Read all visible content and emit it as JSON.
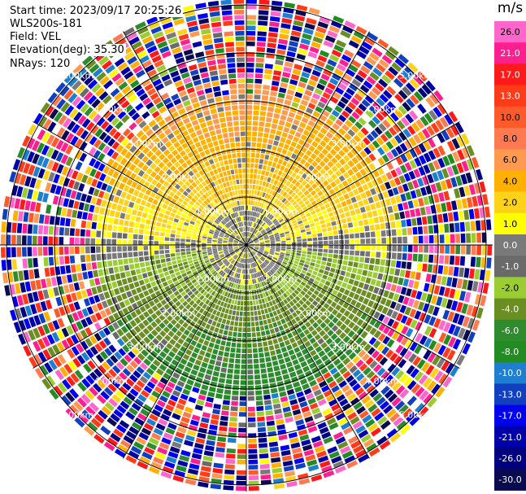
{
  "header": {
    "start_time": "Start time: 2023/09/17 20:25:26",
    "station": "WLS200s-181",
    "field": "Field: VEL",
    "elevation": "Elevation(deg): 35.30",
    "nrays": "NRays: 120"
  },
  "colorbar": {
    "unit": "m/s",
    "ticks": [
      "26.0",
      "21.0",
      "17.0",
      "13.0",
      "10.0",
      "8.0",
      "6.0",
      "4.0",
      "2.0",
      "1.0",
      "0.0",
      "-1.0",
      "-2.0",
      "-4.0",
      "-6.0",
      "-8.0",
      "-10.0",
      "-13.0",
      "-17.0",
      "-21.0",
      "-26.0",
      "-30.0"
    ],
    "colors": [
      "#ff66cc",
      "#ff1f8f",
      "#ff1a1a",
      "#ff3b1a",
      "#ff5a2a",
      "#ff7a50",
      "#ff9a50",
      "#ffb000",
      "#ffd21a",
      "#ffff00",
      "#7a7a7a",
      "#6a6a6a",
      "#9acd32",
      "#6b8e23",
      "#2e8b2e",
      "#228b22",
      "#1e7fd0",
      "#1040c0",
      "#0000ee",
      "#0000aa",
      "#000080",
      "#0a0a50"
    ]
  },
  "chart_data": {
    "type": "ppi",
    "field": "VEL",
    "units": "m/s",
    "elevation_deg": 35.3,
    "n_rays": 120,
    "range_rings_km": [
      1.0,
      2.0,
      3.0,
      4.0,
      5.0
    ],
    "ring_labels": [
      "1.00km",
      "2.00km",
      "3.00km",
      "4.00km",
      "5.00km"
    ],
    "radial_spokes_deg": [
      0,
      30,
      60,
      90,
      120,
      150,
      180,
      210,
      240,
      270,
      300,
      330
    ],
    "color_range": [
      -30.0,
      26.0
    ],
    "regions": [
      {
        "range_km": [
          0.0,
          3.3
        ],
        "sector": "north",
        "values_ms": [
          1.0,
          6.0
        ]
      },
      {
        "range_km": [
          0.0,
          0.8
        ],
        "sector": "center",
        "values_ms": [
          -1.0,
          1.0
        ]
      },
      {
        "range_km": [
          0.0,
          3.3
        ],
        "sector": "south",
        "values_ms": [
          -8.0,
          -2.0
        ]
      },
      {
        "range_km": [
          3.3,
          5.5
        ],
        "sector": "all",
        "values_ms": [
          -30.0,
          26.0
        ],
        "note": "noise"
      }
    ]
  }
}
